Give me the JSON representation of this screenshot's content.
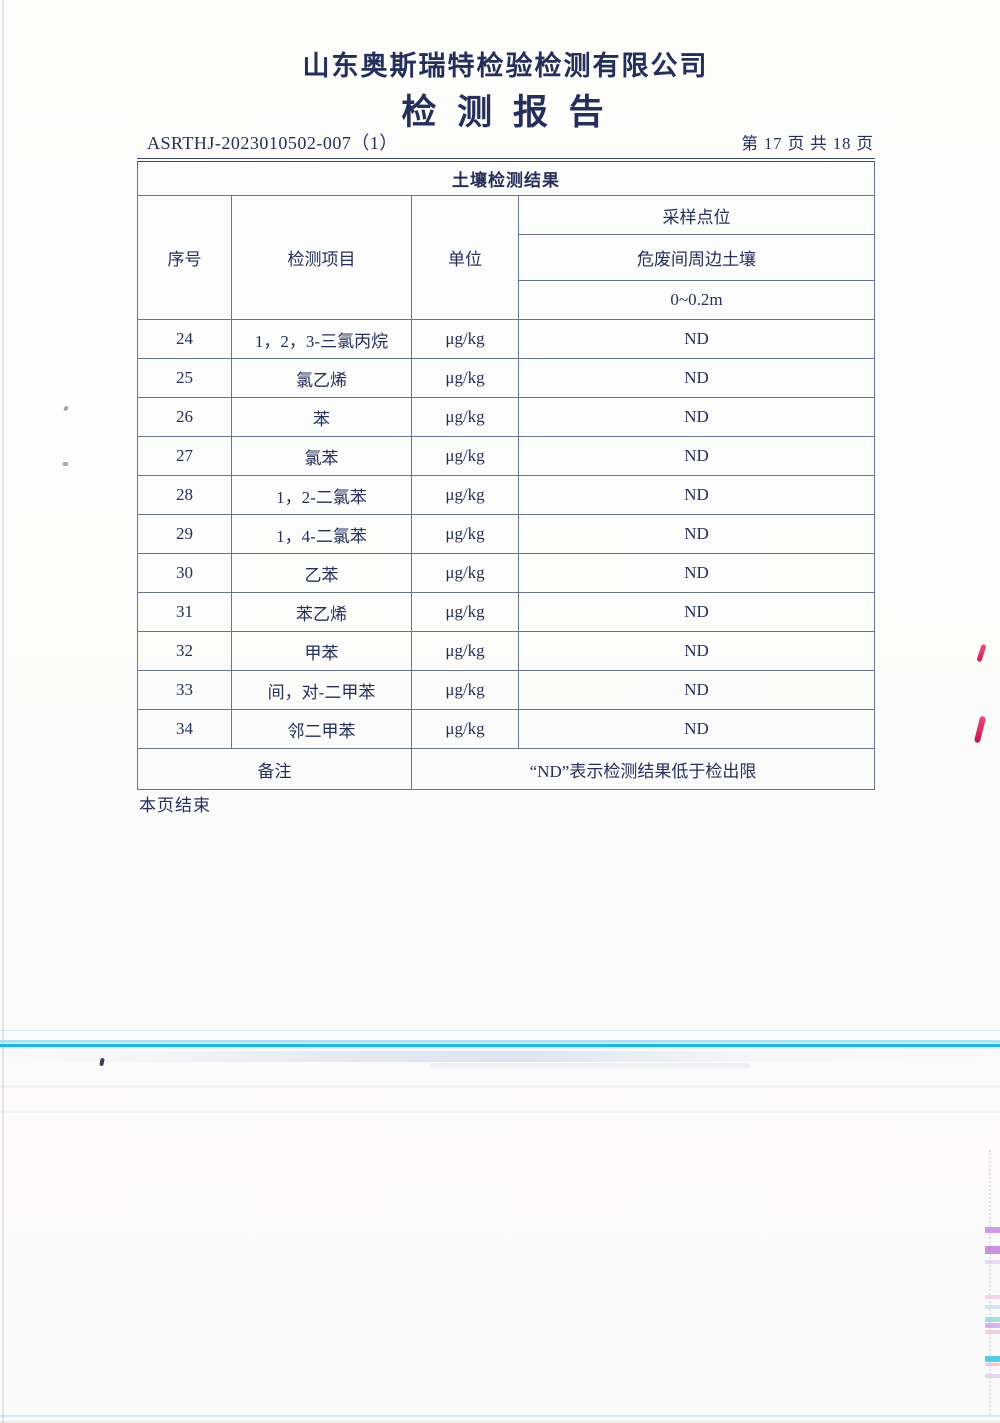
{
  "header": {
    "company": "山东奥斯瑞特检验检测有限公司",
    "report_title": "检 测 报 告",
    "report_no": "ASRTHJ-2023010502-007（1）",
    "page_info": "第 17 页 共 18 页"
  },
  "table": {
    "title": "土壤检测结果",
    "col_no": "序号",
    "col_item": "检测项目",
    "col_unit": "单位",
    "sampling": {
      "label": "采样点位",
      "location": "危废间周边土壤",
      "depth": "0~0.2m"
    },
    "rows": [
      {
        "no": "24",
        "item": "1，2，3-三氯丙烷",
        "unit": "μg/kg",
        "value": "ND"
      },
      {
        "no": "25",
        "item": "氯乙烯",
        "unit": "μg/kg",
        "value": "ND"
      },
      {
        "no": "26",
        "item": "苯",
        "unit": "μg/kg",
        "value": "ND"
      },
      {
        "no": "27",
        "item": "氯苯",
        "unit": "μg/kg",
        "value": "ND"
      },
      {
        "no": "28",
        "item": "1，2-二氯苯",
        "unit": "μg/kg",
        "value": "ND"
      },
      {
        "no": "29",
        "item": "1，4-二氯苯",
        "unit": "μg/kg",
        "value": "ND"
      },
      {
        "no": "30",
        "item": "乙苯",
        "unit": "μg/kg",
        "value": "ND"
      },
      {
        "no": "31",
        "item": "苯乙烯",
        "unit": "μg/kg",
        "value": "ND"
      },
      {
        "no": "32",
        "item": "甲苯",
        "unit": "μg/kg",
        "value": "ND"
      },
      {
        "no": "33",
        "item": "间，对-二甲苯",
        "unit": "μg/kg",
        "value": "ND"
      },
      {
        "no": "34",
        "item": "邻二甲苯",
        "unit": "μg/kg",
        "value": "ND"
      }
    ],
    "remark_label": "备注",
    "remark_text": "“ND”表示检测结果低于检出限"
  },
  "footer": {
    "end_note": "本页结束"
  },
  "colors": {
    "text_navy": "#24305a",
    "table_border": "#68748c",
    "scan_cyan_line": "#25b3d9",
    "scan_red_mark": "#d51e4e"
  }
}
